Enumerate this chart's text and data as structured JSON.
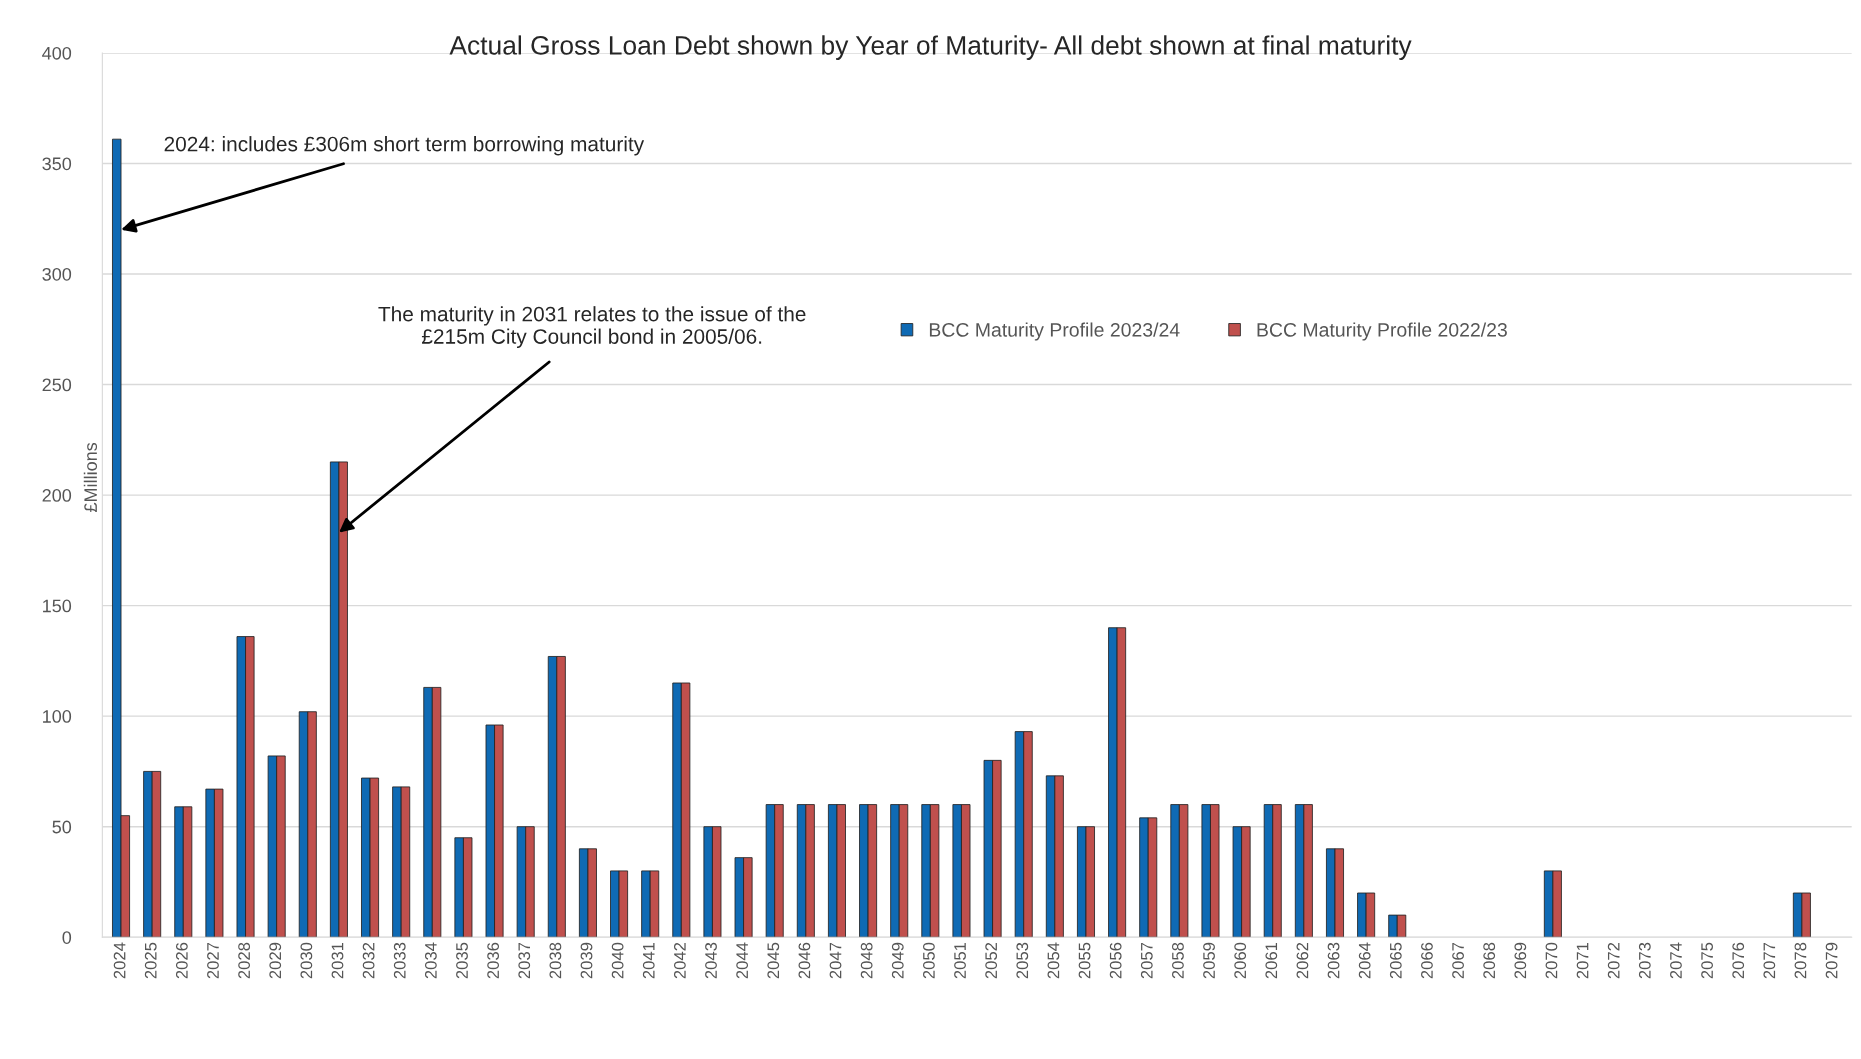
{
  "chart_data": {
    "type": "bar",
    "title": "Actual Gross Loan Debt shown by Year of Maturity- All debt shown at final maturity",
    "ylabel": "£Millions",
    "categories": [
      "2024",
      "2025",
      "2026",
      "2027",
      "2028",
      "2029",
      "2030",
      "2031",
      "2032",
      "2033",
      "2034",
      "2035",
      "2036",
      "2037",
      "2038",
      "2039",
      "2040",
      "2041",
      "2042",
      "2043",
      "2044",
      "2045",
      "2046",
      "2047",
      "2048",
      "2049",
      "2050",
      "2051",
      "2052",
      "2053",
      "2054",
      "2055",
      "2056",
      "2057",
      "2058",
      "2059",
      "2060",
      "2061",
      "2062",
      "2063",
      "2064",
      "2065",
      "2066",
      "2067",
      "2068",
      "2069",
      "2070",
      "2071",
      "2072",
      "2073",
      "2074",
      "2075",
      "2076",
      "2077",
      "2078",
      "2079"
    ],
    "series": [
      {
        "name": "BCC Maturity Profile 2023/24",
        "color": "#0f6ab4",
        "values": [
          361,
          75,
          59,
          67,
          136,
          82,
          102,
          215,
          72,
          68,
          113,
          45,
          96,
          50,
          127,
          40,
          30,
          30,
          115,
          50,
          36,
          60,
          60,
          60,
          60,
          60,
          60,
          60,
          80,
          93,
          73,
          50,
          140,
          54,
          60,
          60,
          50,
          60,
          60,
          40,
          20,
          10,
          null,
          null,
          null,
          null,
          30,
          null,
          null,
          null,
          null,
          null,
          null,
          null,
          20,
          null
        ]
      },
      {
        "name": "BCC Maturity Profile 2022/23",
        "color": "#c0504d",
        "values": [
          55,
          75,
          59,
          67,
          136,
          82,
          102,
          215,
          72,
          68,
          113,
          45,
          96,
          50,
          127,
          40,
          30,
          30,
          115,
          50,
          36,
          60,
          60,
          60,
          60,
          60,
          60,
          60,
          80,
          93,
          73,
          50,
          140,
          54,
          60,
          60,
          50,
          60,
          60,
          40,
          20,
          10,
          null,
          null,
          null,
          null,
          30,
          null,
          null,
          null,
          null,
          null,
          null,
          null,
          20,
          null
        ]
      }
    ],
    "ylim": [
      0,
      400
    ],
    "yticks": [
      0,
      50,
      100,
      150,
      200,
      250,
      300,
      350,
      400
    ],
    "grid": "y",
    "legend": "top",
    "annotations": [
      {
        "text": "2024: includes £306m short term borrowing maturity",
        "x": "2024",
        "y": 320
      },
      {
        "text": "The maturity in 2031 relates to the issue of the\n£215m City Council bond in 2005/06.",
        "x": "2031",
        "y": 183
      }
    ]
  }
}
